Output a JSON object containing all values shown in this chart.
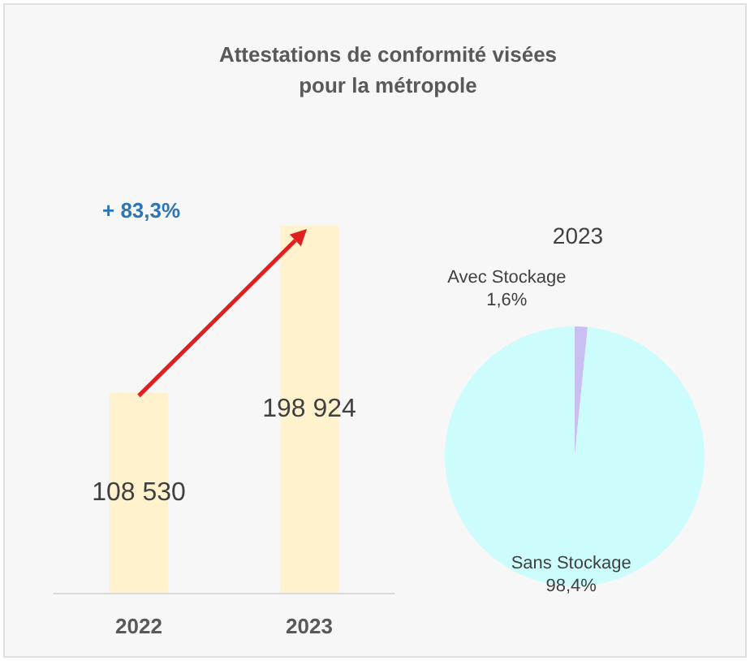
{
  "chart_data": [
    {
      "type": "bar",
      "title": "Attestations de conformité visées\npour la métropole",
      "categories": [
        "2022",
        "2023"
      ],
      "values": [
        108530,
        198924
      ],
      "value_labels": [
        "108 530",
        "198 924"
      ],
      "color": "#fff2cc",
      "annotations": [
        "+ 83,3%"
      ]
    },
    {
      "type": "pie",
      "title": "2023",
      "categories": [
        "Avec Stockage",
        "Sans Stockage"
      ],
      "values": [
        1.6,
        98.4
      ],
      "value_labels": [
        "1,6%",
        "98,4%"
      ],
      "colors": [
        "#c9bff2",
        "#ccfcfc"
      ]
    }
  ]
}
